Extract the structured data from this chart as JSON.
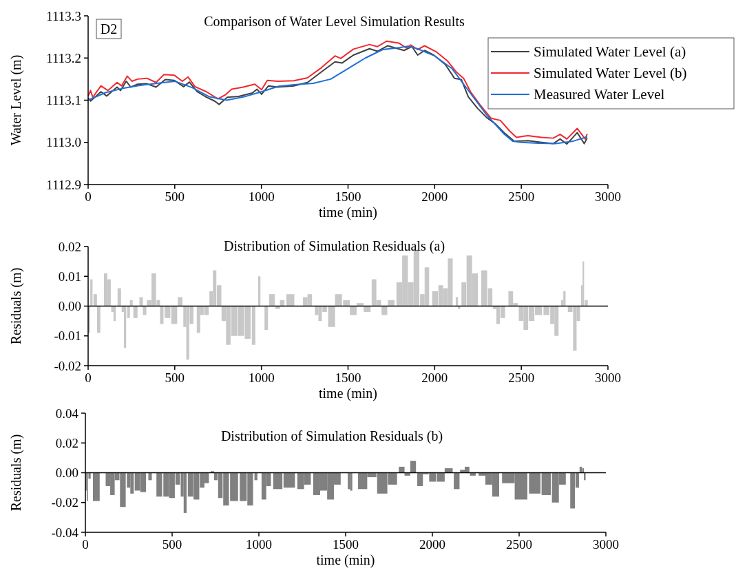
{
  "chart_data": [
    {
      "type": "line",
      "title": "Comparison of Water Level Simulation Results",
      "xlabel": "time (min)",
      "ylabel": "Water Level (m)",
      "annotations": [
        "D2"
      ],
      "legend": "top right",
      "xlim": [
        0,
        3000
      ],
      "xticks": [
        0,
        500,
        1000,
        1500,
        2000,
        2500,
        3000
      ],
      "ylim": [
        1112.9,
        1113.3
      ],
      "yticks": [
        {
          "value": 1112.9,
          "label": "1112.9"
        },
        {
          "value": 1113,
          "label": "1113.0"
        },
        {
          "value": 1113.1,
          "label": "1113.1"
        },
        {
          "value": 1113.2,
          "label": "1113.2"
        },
        {
          "value": 1113.3,
          "label": "1113.3"
        }
      ],
      "series": [
        {
          "name": "Simulated Water Level (a)",
          "color": "#404040",
          "x": [
            0,
            14,
            74,
            107,
            167,
            187,
            220,
            246,
            286,
            339,
            392,
            445,
            498,
            551,
            584,
            630,
            683,
            730,
            756,
            803,
            869,
            948,
            975,
            1001,
            1041,
            1094,
            1187,
            1266,
            1346,
            1425,
            1465,
            1531,
            1624,
            1670,
            1730,
            1823,
            1869,
            1902,
            1942,
            1995,
            2061,
            2114,
            2154,
            2194,
            2247,
            2300,
            2353,
            2406,
            2459,
            2538,
            2617,
            2684,
            2724,
            2763,
            2823,
            2863,
            2880
          ],
          "values": [
            1113.105,
            1113.098,
            1113.12,
            1113.11,
            1113.131,
            1113.123,
            1113.145,
            1113.131,
            1113.138,
            1113.139,
            1113.131,
            1113.149,
            1113.147,
            1113.132,
            1113.143,
            1113.12,
            1113.107,
            1113.098,
            1113.09,
            1113.107,
            1113.109,
            1113.117,
            1113.126,
            1113.114,
            1113.134,
            1113.131,
            1113.134,
            1113.142,
            1113.167,
            1113.191,
            1113.188,
            1113.207,
            1113.222,
            1113.216,
            1113.229,
            1113.218,
            1113.227,
            1113.207,
            1113.218,
            1113.207,
            1113.185,
            1113.152,
            1113.149,
            1113.108,
            1113.081,
            1113.059,
            1113.043,
            1113.021,
            1113.003,
            1113.004,
            1113,
            1112.997,
            1113.008,
            1112.996,
            1113.023,
            1112.997,
            1113.01
          ]
        },
        {
          "name": "Simulated Water Level (b)",
          "color": "#f0282d",
          "x": [
            0,
            14,
            27,
            74,
            114,
            167,
            193,
            226,
            253,
            286,
            339,
            392,
            438,
            498,
            544,
            577,
            617,
            683,
            749,
            789,
            829,
            895,
            962,
            1001,
            1034,
            1094,
            1187,
            1266,
            1346,
            1425,
            1458,
            1531,
            1624,
            1670,
            1723,
            1796,
            1836,
            1862,
            1902,
            1942,
            2008,
            2074,
            2127,
            2167,
            2207,
            2260,
            2326,
            2379,
            2433,
            2472,
            2538,
            2617,
            2684,
            2724,
            2763,
            2823,
            2869,
            2880
          ],
          "values": [
            1113.11,
            1113.123,
            1113.107,
            1113.134,
            1113.123,
            1113.142,
            1113.134,
            1113.157,
            1113.145,
            1113.15,
            1113.152,
            1113.142,
            1113.161,
            1113.159,
            1113.145,
            1113.155,
            1113.132,
            1113.12,
            1113.103,
            1113.112,
            1113.126,
            1113.131,
            1113.138,
            1113.125,
            1113.147,
            1113.145,
            1113.146,
            1113.153,
            1113.177,
            1113.205,
            1113.199,
            1113.221,
            1113.232,
            1113.227,
            1113.24,
            1113.235,
            1113.224,
            1113.231,
            1113.22,
            1113.229,
            1113.215,
            1113.193,
            1113.166,
            1113.152,
            1113.12,
            1113.09,
            1113.057,
            1113.052,
            1113.027,
            1113.012,
            1113.016,
            1113.012,
            1113.01,
            1113.019,
            1113.008,
            1113.033,
            1113.008,
            1113.02
          ]
        },
        {
          "name": "Measured Water Level",
          "color": "#1f6fd6",
          "x": [
            0,
            100,
            200,
            300,
            400,
            500,
            600,
            700,
            800,
            900,
            1000,
            1100,
            1200,
            1300,
            1400,
            1500,
            1600,
            1700,
            1800,
            1850,
            1900,
            2000,
            2100,
            2200,
            2300,
            2400,
            2450,
            2500,
            2600,
            2700,
            2800,
            2880
          ],
          "values": [
            1113.1,
            1113.118,
            1113.128,
            1113.135,
            1113.14,
            1113.145,
            1113.13,
            1113.108,
            1113.1,
            1113.108,
            1113.12,
            1113.133,
            1113.137,
            1113.14,
            1113.15,
            1113.175,
            1113.2,
            1113.22,
            1113.225,
            1113.228,
            1113.222,
            1113.205,
            1113.175,
            1113.12,
            1113.065,
            1113.02,
            1113.003,
            1113,
            1112.998,
            1112.997,
            1113.003,
            1113.013
          ]
        }
      ]
    },
    {
      "type": "bar",
      "title": "Distribution of Simulation Residuals (a)",
      "xlabel": "time (min)",
      "ylabel": "Residuals (m)",
      "xlim": [
        0,
        3000
      ],
      "xticks": [
        0,
        500,
        1000,
        1500,
        2000,
        2500,
        3000
      ],
      "ylim": [
        -0.02,
        0.02
      ],
      "yticks": [
        {
          "value": -0.02,
          "label": "-0.02"
        },
        {
          "value": -0.01,
          "label": "-0.01"
        },
        {
          "value": 0,
          "label": "0.00"
        },
        {
          "value": 0.01,
          "label": "0.01"
        },
        {
          "value": 0.02,
          "label": "0.02"
        }
      ],
      "ref_lines": [
        {
          "axis": "y",
          "value": 0,
          "color": "#000000"
        }
      ],
      "color": "#c8c8c8",
      "x": [
        6,
        19,
        41,
        61,
        80,
        101,
        121,
        140,
        153,
        180,
        200,
        213,
        233,
        249,
        273,
        306,
        326,
        352,
        379,
        405,
        425,
        458,
        497,
        531,
        558,
        575,
        597,
        637,
        657,
        683,
        710,
        730,
        756,
        783,
        809,
        842,
        881,
        921,
        955,
        975,
        988,
        1008,
        1028,
        1061,
        1094,
        1120,
        1167,
        1213,
        1253,
        1279,
        1319,
        1339,
        1365,
        1405,
        1445,
        1491,
        1530,
        1570,
        1610,
        1650,
        1677,
        1710,
        1749,
        1796,
        1829,
        1862,
        1895,
        1929,
        1955,
        2002,
        2035,
        2062,
        2090,
        2128,
        2141,
        2168,
        2200,
        2233,
        2286,
        2320,
        2346,
        2366,
        2393,
        2439,
        2466,
        2499,
        2526,
        2559,
        2599,
        2645,
        2679,
        2703,
        2736,
        2749,
        2782,
        2809,
        2829,
        2849,
        2858,
        2875
      ],
      "values": [
        -0.009,
        0.009,
        0.004,
        -0.009,
        0,
        0.011,
        0.009,
        -0.002,
        -0.005,
        0.006,
        -0.002,
        -0.014,
        -0.004,
        0.002,
        -0.004,
        0.003,
        -0.003,
        0.002,
        0.011,
        0.002,
        -0.006,
        -0.004,
        -0.006,
        0.003,
        -0.007,
        -0.018,
        -0.006,
        -0.009,
        -0.003,
        -0.003,
        0.005,
        0.012,
        0.007,
        -0.005,
        -0.013,
        -0.01,
        -0.01,
        -0.011,
        -0.013,
        0,
        0.01,
        0,
        -0.008,
        0.004,
        -0.001,
        0.002,
        0.004,
        0,
        0.003,
        0.004,
        -0.003,
        -0.005,
        -0.002,
        -0.007,
        0.004,
        0.002,
        -0.003,
        0.001,
        -0.002,
        0.009,
        0.002,
        -0.003,
        0.002,
        0.008,
        0.017,
        0.008,
        0.019,
        0.004,
        0.013,
        0.005,
        0.007,
        0.006,
        0.016,
        0.003,
        -0.001,
        0.008,
        0.017,
        0.011,
        0.012,
        0.006,
        -0.001,
        -0.006,
        -0.004,
        0.005,
        0.001,
        -0.005,
        -0.008,
        -0.005,
        -0.003,
        -0.003,
        -0.006,
        -0.01,
        0.002,
        0.005,
        -0.002,
        -0.015,
        -0.005,
        0.007,
        0.015,
        0.002
      ]
    },
    {
      "type": "bar",
      "title": "Distribution of Simulation Residuals (b)",
      "xlabel": "time (min)",
      "ylabel": "Residuals (m)",
      "xlim": [
        0,
        3000
      ],
      "xticks": [
        0,
        500,
        1000,
        1500,
        2000,
        2500,
        3000
      ],
      "ylim": [
        -0.04,
        0.04
      ],
      "yticks": [
        {
          "value": -0.04,
          "label": "-0.04"
        },
        {
          "value": -0.02,
          "label": "-0.02"
        },
        {
          "value": 0,
          "label": "0.00"
        },
        {
          "value": 0.02,
          "label": "0.02"
        },
        {
          "value": 0.04,
          "label": "0.04"
        }
      ],
      "ref_lines": [
        {
          "axis": "y",
          "value": 0,
          "color": "#000000"
        }
      ],
      "color": "#808080",
      "x": [
        4,
        11,
        24,
        63,
        103,
        130,
        156,
        183,
        216,
        249,
        269,
        300,
        333,
        373,
        393,
        426,
        466,
        499,
        532,
        558,
        575,
        606,
        640,
        673,
        699,
        732,
        752,
        778,
        811,
        857,
        910,
        950,
        983,
        1000,
        1029,
        1056,
        1109,
        1175,
        1241,
        1280,
        1333,
        1373,
        1413,
        1452,
        1519,
        1532,
        1598,
        1651,
        1711,
        1770,
        1823,
        1856,
        1889,
        1929,
        1962,
        2001,
        2048,
        2094,
        2140,
        2173,
        2200,
        2233,
        2286,
        2325,
        2365,
        2438,
        2511,
        2590,
        2656,
        2709,
        2749,
        2808,
        2835,
        2855,
        2868,
        2878
      ],
      "values": [
        -0.012,
        -0.019,
        -0.004,
        -0.019,
        0,
        -0.009,
        -0.015,
        -0.005,
        -0.023,
        -0.01,
        -0.014,
        -0.012,
        -0.013,
        -0.005,
        0,
        -0.016,
        -0.016,
        -0.017,
        -0.008,
        -0.016,
        -0.027,
        -0.016,
        -0.018,
        -0.01,
        -0.007,
        0.001,
        -0.005,
        -0.017,
        -0.022,
        -0.019,
        -0.019,
        -0.022,
        -0.005,
        0,
        -0.018,
        -0.009,
        -0.011,
        -0.01,
        -0.011,
        -0.008,
        -0.015,
        -0.012,
        -0.018,
        -0.008,
        -0.011,
        -0.012,
        -0.011,
        -0.003,
        -0.014,
        -0.008,
        0.004,
        -0.002,
        0.008,
        -0.009,
        -0.001,
        -0.006,
        -0.006,
        0.003,
        -0.011,
        0.002,
        0.004,
        -0.002,
        -0.002,
        -0.008,
        -0.016,
        -0.007,
        -0.018,
        -0.014,
        -0.015,
        -0.02,
        -0.008,
        -0.024,
        -0.01,
        0.004,
        0.003,
        -0.005
      ]
    }
  ]
}
